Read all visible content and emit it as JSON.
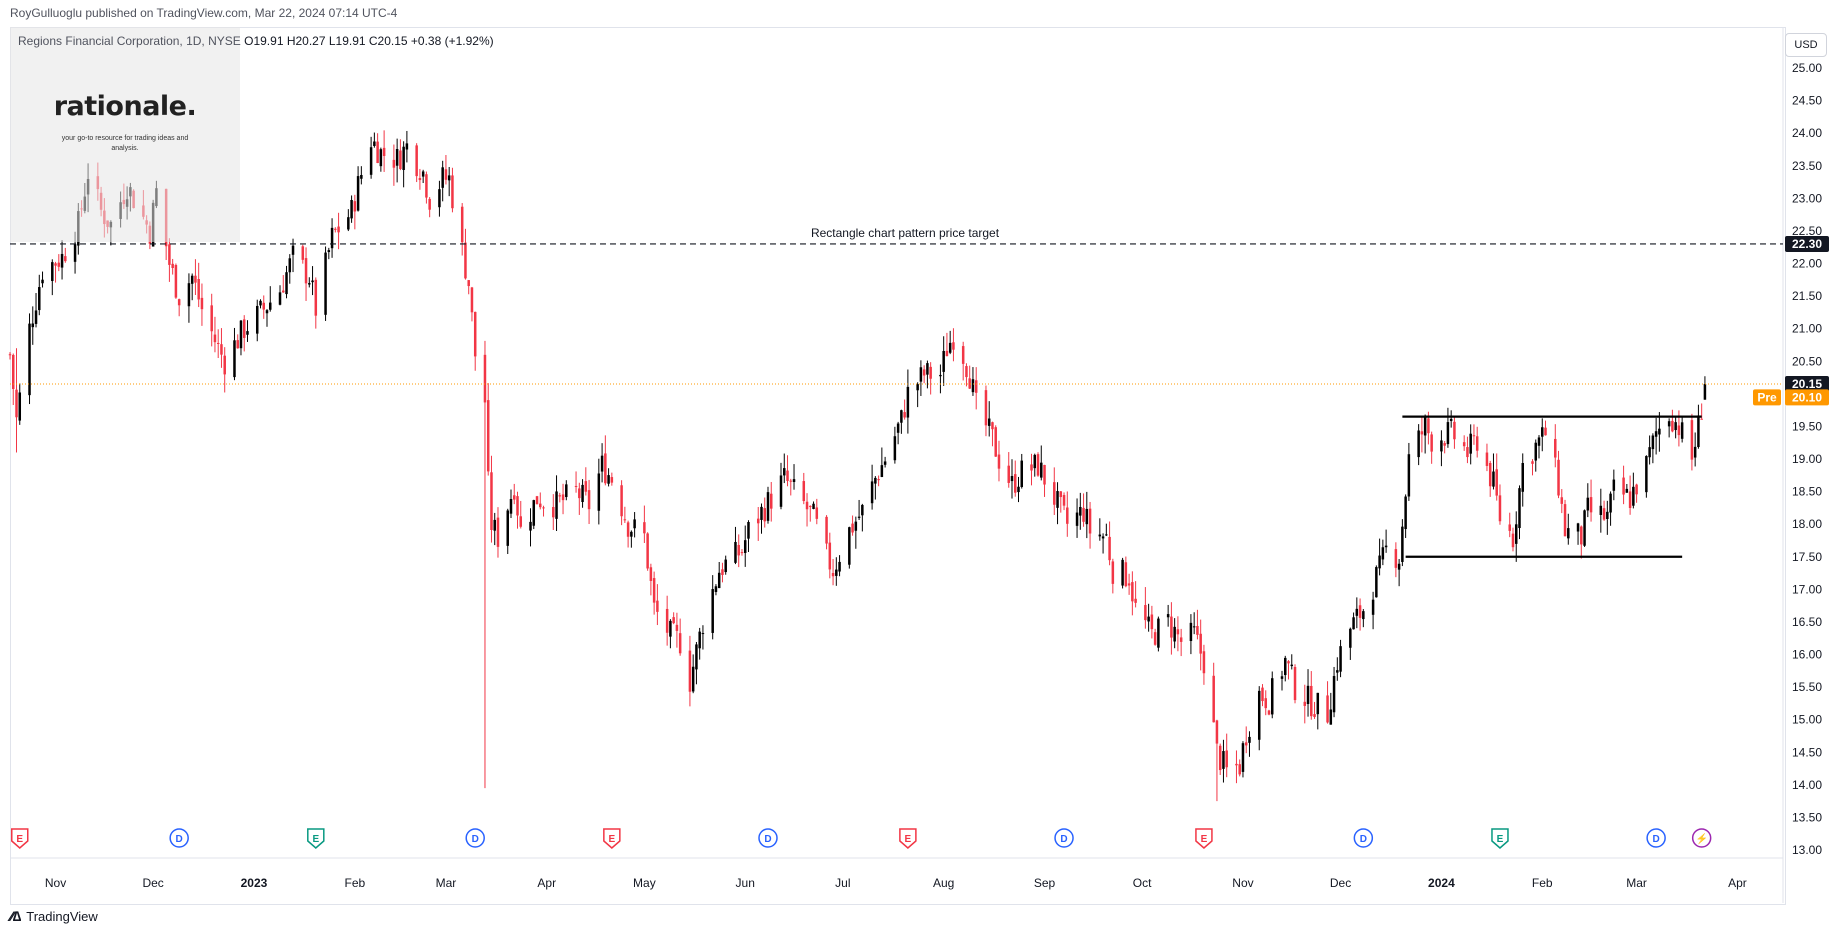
{
  "header": {
    "publisher": "RoyGulluoglu published on TradingView.com, Mar 22, 2024 07:14 UTC-4",
    "symbol_line": "Regions Financial Corporation, 1D, NYSE",
    "ohlc": "O19.91  H20.27  L19.91  C20.15  +0.38 (+1.92%)"
  },
  "logo": {
    "title": "rationale.",
    "tagline": "your go-to resource for trading ideas and analysis."
  },
  "currency": "USD",
  "footer": {
    "brand": "TradingView"
  },
  "colors": {
    "up": "#000000",
    "down": "#f23645",
    "accent": "#131722",
    "pre": "#ff9800",
    "event_e": "#f23645",
    "event_d": "#2962ff",
    "event_e_green": "#089981",
    "event_split": "#9c27b0"
  },
  "chart_data": {
    "type": "candlestick",
    "title": "Regions Financial Corporation, 1D, NYSE",
    "ylim": [
      12.75,
      25.25
    ],
    "y_ticks": [
      13.0,
      13.5,
      14.0,
      14.5,
      15.0,
      15.5,
      16.0,
      16.5,
      17.0,
      17.5,
      18.0,
      18.5,
      19.0,
      19.5,
      20.0,
      20.5,
      21.0,
      21.5,
      22.0,
      22.5,
      23.0,
      23.5,
      24.0,
      24.5,
      25.0
    ],
    "x_start": "2022-10-18",
    "x_end": "2024-04-15",
    "x_labels": [
      {
        "label": "Nov",
        "date": "2022-11-01"
      },
      {
        "label": "Dec",
        "date": "2022-12-01"
      },
      {
        "label": "2023",
        "date": "2023-01-01",
        "bold": true
      },
      {
        "label": "Feb",
        "date": "2023-02-01"
      },
      {
        "label": "Mar",
        "date": "2023-03-01"
      },
      {
        "label": "Apr",
        "date": "2023-04-01"
      },
      {
        "label": "May",
        "date": "2023-05-01"
      },
      {
        "label": "Jun",
        "date": "2023-06-01"
      },
      {
        "label": "Jul",
        "date": "2023-07-01"
      },
      {
        "label": "Aug",
        "date": "2023-08-01"
      },
      {
        "label": "Sep",
        "date": "2023-09-01"
      },
      {
        "label": "Oct",
        "date": "2023-10-01"
      },
      {
        "label": "Nov",
        "date": "2023-11-01"
      },
      {
        "label": "Dec",
        "date": "2023-12-01"
      },
      {
        "label": "2024",
        "date": "2024-01-01",
        "bold": true
      },
      {
        "label": "Feb",
        "date": "2024-02-01"
      },
      {
        "label": "Mar",
        "date": "2024-03-01"
      },
      {
        "label": "Apr",
        "date": "2024-04-01"
      }
    ],
    "anchors": [
      [
        "2022-10-18",
        20.6
      ],
      [
        "2022-10-20",
        19.6
      ],
      [
        "2022-10-24",
        21.0
      ],
      [
        "2022-10-28",
        21.9
      ],
      [
        "2022-11-03",
        22.1
      ],
      [
        "2022-11-08",
        22.6
      ],
      [
        "2022-11-11",
        23.4
      ],
      [
        "2022-11-15",
        22.8
      ],
      [
        "2022-11-18",
        22.6
      ],
      [
        "2022-11-23",
        23.2
      ],
      [
        "2022-11-30",
        22.5
      ],
      [
        "2022-12-02",
        23.1
      ],
      [
        "2022-12-06",
        22.0
      ],
      [
        "2022-12-09",
        21.5
      ],
      [
        "2022-12-13",
        21.8
      ],
      [
        "2022-12-16",
        21.3
      ],
      [
        "2022-12-21",
        20.7
      ],
      [
        "2022-12-23",
        20.5
      ],
      [
        "2022-12-29",
        21.0
      ],
      [
        "2023-01-04",
        21.3
      ],
      [
        "2023-01-09",
        21.6
      ],
      [
        "2023-01-13",
        22.1
      ],
      [
        "2023-01-18",
        21.8
      ],
      [
        "2023-01-20",
        21.3
      ],
      [
        "2023-01-25",
        22.4
      ],
      [
        "2023-01-31",
        22.8
      ],
      [
        "2023-02-02",
        23.2
      ],
      [
        "2023-02-06",
        23.9
      ],
      [
        "2023-02-09",
        23.7
      ],
      [
        "2023-02-14",
        23.6
      ],
      [
        "2023-02-17",
        23.8
      ],
      [
        "2023-02-22",
        23.4
      ],
      [
        "2023-02-24",
        23.0
      ],
      [
        "2023-02-28",
        23.3
      ],
      [
        "2023-03-02",
        23.3
      ],
      [
        "2023-03-06",
        22.2
      ],
      [
        "2023-03-08",
        21.7
      ],
      [
        "2023-03-10",
        20.6
      ],
      [
        "2023-03-13",
        19.9
      ],
      [
        "2023-03-14",
        18.6
      ],
      [
        "2023-03-15",
        18.0
      ],
      [
        "2023-03-17",
        17.8
      ],
      [
        "2023-03-22",
        18.6
      ],
      [
        "2023-03-24",
        17.9
      ],
      [
        "2023-03-29",
        18.4
      ],
      [
        "2023-04-04",
        18.3
      ],
      [
        "2023-04-10",
        18.5
      ],
      [
        "2023-04-14",
        18.3
      ],
      [
        "2023-04-18",
        18.9
      ],
      [
        "2023-04-21",
        18.7
      ],
      [
        "2023-04-26",
        18.0
      ],
      [
        "2023-05-01",
        17.8
      ],
      [
        "2023-05-04",
        16.7
      ],
      [
        "2023-05-09",
        16.3
      ],
      [
        "2023-05-12",
        16.2
      ],
      [
        "2023-05-15",
        15.6
      ],
      [
        "2023-05-19",
        16.5
      ],
      [
        "2023-05-24",
        17.3
      ],
      [
        "2023-05-31",
        17.6
      ],
      [
        "2023-06-02",
        17.9
      ],
      [
        "2023-06-09",
        18.4
      ],
      [
        "2023-06-13",
        18.7
      ],
      [
        "2023-06-16",
        18.5
      ],
      [
        "2023-06-22",
        18.1
      ],
      [
        "2023-06-26",
        17.5
      ],
      [
        "2023-06-28",
        17.3
      ],
      [
        "2023-07-03",
        17.9
      ],
      [
        "2023-07-07",
        18.2
      ],
      [
        "2023-07-11",
        18.7
      ],
      [
        "2023-07-14",
        19.0
      ],
      [
        "2023-07-19",
        19.6
      ],
      [
        "2023-07-21",
        20.0
      ],
      [
        "2023-07-26",
        20.3
      ],
      [
        "2023-07-31",
        20.3
      ],
      [
        "2023-08-02",
        20.7
      ],
      [
        "2023-08-04",
        20.9
      ],
      [
        "2023-08-07",
        20.6
      ],
      [
        "2023-08-09",
        20.3
      ],
      [
        "2023-08-11",
        19.8
      ],
      [
        "2023-08-16",
        19.3
      ],
      [
        "2023-08-18",
        19.0
      ],
      [
        "2023-08-22",
        18.6
      ],
      [
        "2023-08-25",
        18.8
      ],
      [
        "2023-08-30",
        18.9
      ],
      [
        "2023-09-05",
        18.3
      ],
      [
        "2023-09-08",
        18.0
      ],
      [
        "2023-09-13",
        18.2
      ],
      [
        "2023-09-15",
        17.9
      ],
      [
        "2023-09-20",
        17.8
      ],
      [
        "2023-09-22",
        17.3
      ],
      [
        "2023-09-27",
        17.2
      ],
      [
        "2023-09-29",
        16.7
      ],
      [
        "2023-10-04",
        16.3
      ],
      [
        "2023-10-09",
        16.5
      ],
      [
        "2023-10-13",
        16.2
      ],
      [
        "2023-10-17",
        16.3
      ],
      [
        "2023-10-20",
        15.9
      ],
      [
        "2023-10-24",
        14.5
      ],
      [
        "2023-10-27",
        14.2
      ],
      [
        "2023-10-31",
        14.3
      ],
      [
        "2023-11-02",
        14.8
      ],
      [
        "2023-11-06",
        15.4
      ],
      [
        "2023-11-09",
        15.3
      ],
      [
        "2023-11-14",
        15.9
      ],
      [
        "2023-11-17",
        15.5
      ],
      [
        "2023-11-21",
        15.3
      ],
      [
        "2023-11-27",
        15.1
      ],
      [
        "2023-11-30",
        15.9
      ],
      [
        "2023-12-04",
        16.4
      ],
      [
        "2023-12-08",
        16.7
      ],
      [
        "2023-12-13",
        17.3
      ],
      [
        "2023-12-15",
        17.6
      ],
      [
        "2023-12-19",
        17.5
      ],
      [
        "2023-12-22",
        19.0
      ],
      [
        "2023-12-27",
        19.5
      ],
      [
        "2023-12-29",
        19.3
      ],
      [
        "2024-01-04",
        19.4
      ],
      [
        "2024-01-09",
        19.1
      ],
      [
        "2024-01-12",
        19.3
      ],
      [
        "2024-01-17",
        18.6
      ],
      [
        "2024-01-19",
        18.1
      ],
      [
        "2024-01-23",
        17.8
      ],
      [
        "2024-01-26",
        18.9
      ],
      [
        "2024-01-30",
        19.2
      ],
      [
        "2024-02-02",
        19.4
      ],
      [
        "2024-02-06",
        18.6
      ],
      [
        "2024-02-08",
        17.9
      ],
      [
        "2024-02-13",
        17.8
      ],
      [
        "2024-02-15",
        18.2
      ],
      [
        "2024-02-21",
        18.1
      ],
      [
        "2024-02-23",
        18.5
      ],
      [
        "2024-02-28",
        18.4
      ],
      [
        "2024-03-04",
        18.9
      ],
      [
        "2024-03-07",
        19.4
      ],
      [
        "2024-03-11",
        19.7
      ],
      [
        "2024-03-14",
        19.5
      ],
      [
        "2024-03-18",
        19.0
      ],
      [
        "2024-03-20",
        19.5
      ],
      [
        "2024-03-21",
        19.8
      ],
      [
        "2024-03-22",
        20.15
      ]
    ],
    "spikes": [
      {
        "date": "2023-03-13",
        "low": 13.95,
        "high": 20.2
      },
      {
        "date": "2023-10-24",
        "low": 13.75,
        "high": 14.9
      },
      {
        "date": "2022-10-20",
        "low": 19.1,
        "high": 20.7
      }
    ],
    "last": {
      "open": 19.91,
      "high": 20.27,
      "low": 19.91,
      "close": 20.15,
      "change": 0.38,
      "change_pct": 1.92
    },
    "price_lines": [
      {
        "value": 22.3,
        "style": "dashed",
        "label": "22.30",
        "annotation": "Rectangle chart pattern price target",
        "from": "2022-10-18",
        "to": "2024-04-15"
      },
      {
        "value": 20.15,
        "style": "dotted",
        "label": "20.15",
        "from": "2022-10-18",
        "to": "2024-04-15"
      },
      {
        "value": 20.1,
        "style": "none",
        "label": "20.10",
        "prefix": "Pre"
      }
    ],
    "rectangle": {
      "top": {
        "value": 19.65,
        "from": "2023-12-20",
        "to": "2024-03-21"
      },
      "bottom": {
        "value": 17.5,
        "from": "2023-12-21",
        "to": "2024-03-15"
      }
    },
    "events": [
      {
        "type": "E",
        "date": "2022-10-21",
        "color": "#f23645"
      },
      {
        "type": "D",
        "date": "2022-12-09",
        "color": "#2962ff"
      },
      {
        "type": "E",
        "date": "2023-01-20",
        "color": "#089981"
      },
      {
        "type": "D",
        "date": "2023-03-10",
        "color": "#2962ff"
      },
      {
        "type": "E",
        "date": "2023-04-21",
        "color": "#f23645"
      },
      {
        "type": "D",
        "date": "2023-06-08",
        "color": "#2962ff"
      },
      {
        "type": "E",
        "date": "2023-07-21",
        "color": "#f23645"
      },
      {
        "type": "D",
        "date": "2023-09-07",
        "color": "#2962ff"
      },
      {
        "type": "E",
        "date": "2023-10-20",
        "color": "#f23645"
      },
      {
        "type": "D",
        "date": "2023-12-08",
        "color": "#2962ff"
      },
      {
        "type": "E",
        "date": "2024-01-19",
        "color": "#089981"
      },
      {
        "type": "D",
        "date": "2024-03-07",
        "color": "#2962ff"
      },
      {
        "type": "S",
        "date": "2024-03-21",
        "color": "#9c27b0"
      }
    ]
  }
}
